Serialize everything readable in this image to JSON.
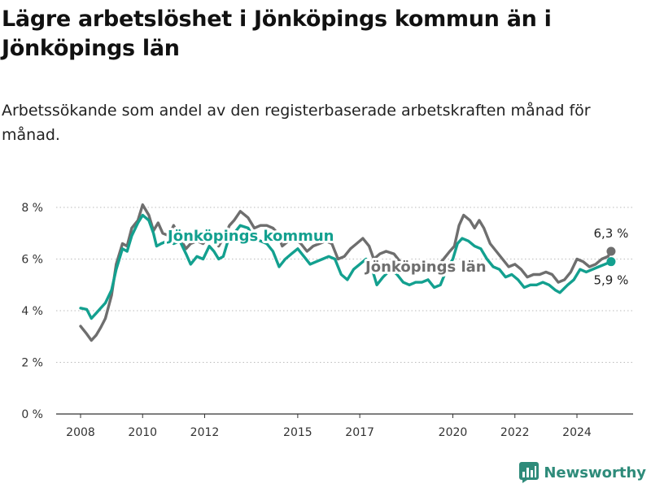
{
  "header": {
    "title": "Lägre arbetslöshet i Jönköpings kommun än i Jönköpings län",
    "subtitle": "Arbetssökande som andel av den registerbaserade arbetskraften månad för månad."
  },
  "brand": {
    "name": "Newsworthy",
    "icon": "bar-chart-logo-icon",
    "color": "#2e8b7a"
  },
  "colors": {
    "kommun": "#13a08f",
    "lan": "#6e6e6e"
  },
  "chart_data": {
    "type": "line",
    "x_unit": "year (monthly data)",
    "xlim": [
      2008,
      2025.3
    ],
    "ylim": [
      0,
      8.8
    ],
    "y_ticks": [
      0,
      2,
      4,
      6,
      8
    ],
    "y_tick_labels": [
      "0 %",
      "2 %",
      "4 %",
      "6 %",
      "8 %"
    ],
    "x_ticks": [
      2008,
      2010,
      2012,
      2015,
      2017,
      2020,
      2022,
      2024
    ],
    "x_tick_labels": [
      "2008",
      "2010",
      "2012",
      "2015",
      "2017",
      "2020",
      "2022",
      "2024"
    ],
    "grid": "horizontal dotted",
    "legend": "inline labels",
    "series": [
      {
        "name": "Jönköpings kommun",
        "color": "#13a08f",
        "end_label": "5,9 %",
        "points": [
          [
            2008.0,
            4.1
          ],
          [
            2008.2,
            4.05
          ],
          [
            2008.35,
            3.7
          ],
          [
            2008.5,
            3.9
          ],
          [
            2008.65,
            4.1
          ],
          [
            2008.8,
            4.3
          ],
          [
            2009.0,
            4.8
          ],
          [
            2009.15,
            5.6
          ],
          [
            2009.35,
            6.4
          ],
          [
            2009.5,
            6.3
          ],
          [
            2009.65,
            6.9
          ],
          [
            2009.85,
            7.4
          ],
          [
            2010.0,
            7.7
          ],
          [
            2010.2,
            7.5
          ],
          [
            2010.35,
            7.0
          ],
          [
            2010.45,
            6.5
          ],
          [
            2010.6,
            6.6
          ],
          [
            2010.8,
            6.7
          ],
          [
            2011.0,
            6.6
          ],
          [
            2011.2,
            6.7
          ],
          [
            2011.4,
            6.2
          ],
          [
            2011.55,
            5.8
          ],
          [
            2011.75,
            6.1
          ],
          [
            2011.95,
            6.0
          ],
          [
            2012.15,
            6.5
          ],
          [
            2012.3,
            6.3
          ],
          [
            2012.45,
            6.0
          ],
          [
            2012.6,
            6.1
          ],
          [
            2012.8,
            6.9
          ],
          [
            2012.95,
            7.0
          ],
          [
            2013.15,
            7.3
          ],
          [
            2013.4,
            7.2
          ],
          [
            2013.6,
            6.8
          ],
          [
            2013.8,
            6.7
          ],
          [
            2014.0,
            6.6
          ],
          [
            2014.2,
            6.3
          ],
          [
            2014.4,
            5.7
          ],
          [
            2014.6,
            6.0
          ],
          [
            2014.8,
            6.2
          ],
          [
            2015.0,
            6.4
          ],
          [
            2015.2,
            6.1
          ],
          [
            2015.4,
            5.8
          ],
          [
            2015.6,
            5.9
          ],
          [
            2015.8,
            6.0
          ],
          [
            2016.0,
            6.1
          ],
          [
            2016.2,
            6.0
          ],
          [
            2016.4,
            5.4
          ],
          [
            2016.6,
            5.2
          ],
          [
            2016.8,
            5.6
          ],
          [
            2017.0,
            5.8
          ],
          [
            2017.2,
            6.0
          ],
          [
            2017.4,
            5.6
          ],
          [
            2017.55,
            5.0
          ],
          [
            2017.75,
            5.3
          ],
          [
            2018.0,
            5.6
          ],
          [
            2018.2,
            5.4
          ],
          [
            2018.4,
            5.1
          ],
          [
            2018.6,
            5.0
          ],
          [
            2018.8,
            5.1
          ],
          [
            2019.0,
            5.1
          ],
          [
            2019.2,
            5.2
          ],
          [
            2019.4,
            4.9
          ],
          [
            2019.6,
            5.0
          ],
          [
            2019.8,
            5.6
          ],
          [
            2020.0,
            6.0
          ],
          [
            2020.15,
            6.6
          ],
          [
            2020.3,
            6.8
          ],
          [
            2020.5,
            6.7
          ],
          [
            2020.7,
            6.5
          ],
          [
            2020.9,
            6.4
          ],
          [
            2021.1,
            6.0
          ],
          [
            2021.3,
            5.7
          ],
          [
            2021.5,
            5.6
          ],
          [
            2021.7,
            5.3
          ],
          [
            2021.9,
            5.4
          ],
          [
            2022.1,
            5.2
          ],
          [
            2022.3,
            4.9
          ],
          [
            2022.5,
            5.0
          ],
          [
            2022.7,
            5.0
          ],
          [
            2022.9,
            5.1
          ],
          [
            2023.1,
            5.0
          ],
          [
            2023.3,
            4.8
          ],
          [
            2023.45,
            4.7
          ],
          [
            2023.7,
            5.0
          ],
          [
            2023.9,
            5.2
          ],
          [
            2024.1,
            5.6
          ],
          [
            2024.3,
            5.5
          ],
          [
            2024.5,
            5.6
          ],
          [
            2024.7,
            5.7
          ],
          [
            2024.9,
            5.8
          ],
          [
            2025.1,
            5.9
          ]
        ]
      },
      {
        "name": "Jönköpings län",
        "color": "#6e6e6e",
        "end_label": "6,3 %",
        "points": [
          [
            2008.0,
            3.4
          ],
          [
            2008.2,
            3.1
          ],
          [
            2008.35,
            2.85
          ],
          [
            2008.5,
            3.05
          ],
          [
            2008.65,
            3.35
          ],
          [
            2008.8,
            3.7
          ],
          [
            2009.0,
            4.6
          ],
          [
            2009.15,
            5.8
          ],
          [
            2009.35,
            6.6
          ],
          [
            2009.5,
            6.5
          ],
          [
            2009.65,
            7.2
          ],
          [
            2009.85,
            7.5
          ],
          [
            2010.0,
            8.1
          ],
          [
            2010.2,
            7.7
          ],
          [
            2010.35,
            7.1
          ],
          [
            2010.5,
            7.4
          ],
          [
            2010.65,
            7.0
          ],
          [
            2010.85,
            6.9
          ],
          [
            2011.0,
            7.3
          ],
          [
            2011.2,
            6.8
          ],
          [
            2011.4,
            6.4
          ],
          [
            2011.55,
            6.6
          ],
          [
            2011.75,
            6.7
          ],
          [
            2011.95,
            6.6
          ],
          [
            2012.15,
            6.9
          ],
          [
            2012.3,
            6.8
          ],
          [
            2012.45,
            6.5
          ],
          [
            2012.6,
            6.8
          ],
          [
            2012.8,
            7.3
          ],
          [
            2012.95,
            7.5
          ],
          [
            2013.15,
            7.85
          ],
          [
            2013.4,
            7.6
          ],
          [
            2013.6,
            7.2
          ],
          [
            2013.8,
            7.3
          ],
          [
            2014.0,
            7.3
          ],
          [
            2014.2,
            7.2
          ],
          [
            2014.35,
            7.0
          ],
          [
            2014.5,
            6.5
          ],
          [
            2014.7,
            6.7
          ],
          [
            2014.9,
            6.8
          ],
          [
            2015.1,
            6.6
          ],
          [
            2015.3,
            6.3
          ],
          [
            2015.5,
            6.5
          ],
          [
            2015.7,
            6.6
          ],
          [
            2015.9,
            6.7
          ],
          [
            2016.1,
            6.6
          ],
          [
            2016.3,
            6.0
          ],
          [
            2016.5,
            6.1
          ],
          [
            2016.7,
            6.4
          ],
          [
            2016.9,
            6.6
          ],
          [
            2017.1,
            6.8
          ],
          [
            2017.3,
            6.5
          ],
          [
            2017.45,
            6.0
          ],
          [
            2017.65,
            6.2
          ],
          [
            2017.85,
            6.3
          ],
          [
            2018.1,
            6.2
          ],
          [
            2018.3,
            5.9
          ],
          [
            2018.5,
            5.8
          ],
          [
            2018.7,
            5.7
          ],
          [
            2018.9,
            5.8
          ],
          [
            2019.1,
            5.8
          ],
          [
            2019.3,
            5.7
          ],
          [
            2019.5,
            5.7
          ],
          [
            2019.7,
            6.0
          ],
          [
            2019.9,
            6.3
          ],
          [
            2020.05,
            6.5
          ],
          [
            2020.2,
            7.3
          ],
          [
            2020.35,
            7.7
          ],
          [
            2020.55,
            7.5
          ],
          [
            2020.7,
            7.2
          ],
          [
            2020.85,
            7.5
          ],
          [
            2021.0,
            7.2
          ],
          [
            2021.2,
            6.6
          ],
          [
            2021.4,
            6.3
          ],
          [
            2021.6,
            6.0
          ],
          [
            2021.8,
            5.7
          ],
          [
            2022.0,
            5.8
          ],
          [
            2022.2,
            5.6
          ],
          [
            2022.4,
            5.3
          ],
          [
            2022.6,
            5.4
          ],
          [
            2022.8,
            5.4
          ],
          [
            2023.0,
            5.5
          ],
          [
            2023.2,
            5.4
          ],
          [
            2023.4,
            5.1
          ],
          [
            2023.6,
            5.2
          ],
          [
            2023.8,
            5.5
          ],
          [
            2024.0,
            6.0
          ],
          [
            2024.2,
            5.9
          ],
          [
            2024.4,
            5.7
          ],
          [
            2024.6,
            5.8
          ],
          [
            2024.8,
            6.0
          ],
          [
            2025.0,
            6.1
          ],
          [
            2025.1,
            6.3
          ]
        ]
      }
    ]
  }
}
